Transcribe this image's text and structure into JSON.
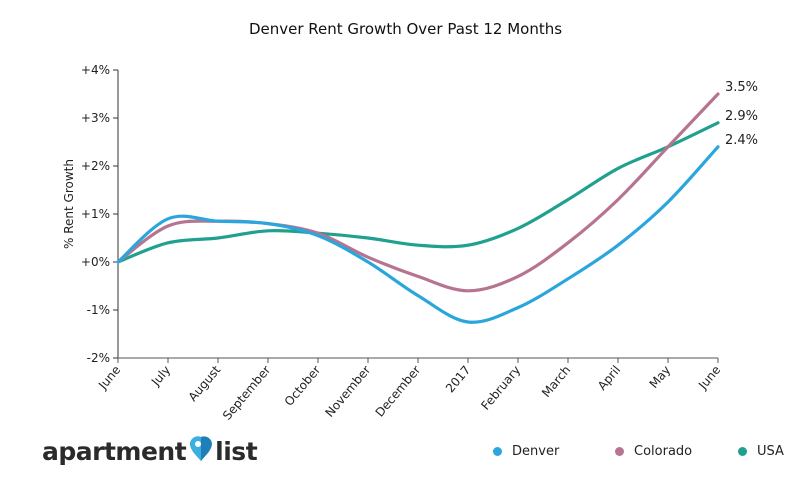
{
  "chart_data": {
    "type": "line",
    "title": "Denver Rent Growth Over Past 12 Months",
    "xlabel": "",
    "ylabel": "% Rent Growth",
    "ylim": [
      -2,
      4
    ],
    "yticks": [
      4,
      3,
      2,
      1,
      0,
      -1,
      -2
    ],
    "ytick_labels": [
      "+4%",
      "+3%",
      "+2%",
      "+1%",
      "+0%",
      "-1%",
      "-2%"
    ],
    "categories": [
      "June",
      "July",
      "August",
      "September",
      "October",
      "November",
      "December",
      "2017",
      "February",
      "March",
      "April",
      "May",
      "June"
    ],
    "grid": false,
    "legend_position": "bottom-right",
    "series": [
      {
        "name": "Denver",
        "color": "#2aa6dd",
        "end_label": "2.4%",
        "values": [
          0,
          0.9,
          0.85,
          0.8,
          0.55,
          0.0,
          -0.7,
          -1.25,
          -0.95,
          -0.35,
          0.35,
          1.25,
          2.4
        ]
      },
      {
        "name": "Colorado",
        "color": "#b77490",
        "end_label": "3.5%",
        "values": [
          0,
          0.75,
          0.85,
          0.8,
          0.6,
          0.1,
          -0.3,
          -0.6,
          -0.3,
          0.4,
          1.3,
          2.4,
          3.5
        ]
      },
      {
        "name": "USA",
        "color": "#20a08e",
        "end_label": "2.9%",
        "values": [
          0,
          0.4,
          0.5,
          0.65,
          0.6,
          0.5,
          0.35,
          0.35,
          0.7,
          1.3,
          1.95,
          2.4,
          2.9
        ]
      }
    ]
  },
  "branding": {
    "logo_word1": "apartment",
    "logo_word2": "list",
    "logo_icon": "map-pin-heart-icon"
  },
  "legend": [
    {
      "label": "Denver",
      "color": "#2aa6dd"
    },
    {
      "label": "Colorado",
      "color": "#b77490"
    },
    {
      "label": "USA",
      "color": "#20a08e"
    }
  ]
}
